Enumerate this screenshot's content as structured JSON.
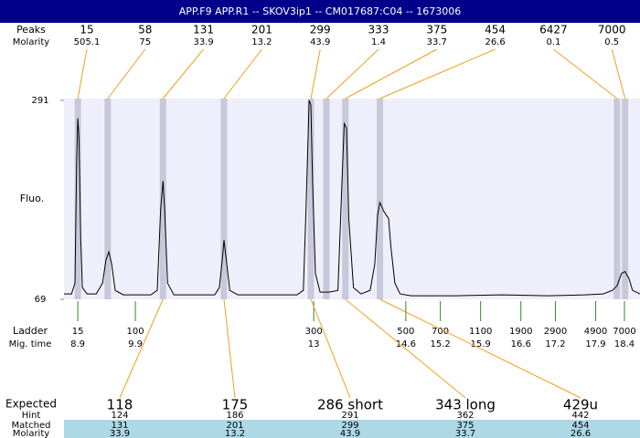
{
  "chart_data": {
    "type": "line",
    "title": "APP.F9  APP.R1 -- SKOV3ip1 -- CM017687:C04 -- 1673006",
    "ylabel": "Fluo.",
    "ylim": [
      69,
      291
    ],
    "yticks": [
      69,
      291
    ],
    "xlim": [
      8.66,
      18.67
    ],
    "color": "#000000",
    "x": [
      8.66,
      8.79,
      8.85,
      8.88,
      8.9,
      8.92,
      8.95,
      8.98,
      9.06,
      9.22,
      9.33,
      9.39,
      9.44,
      9.49,
      9.55,
      9.69,
      9.93,
      10.17,
      10.28,
      10.34,
      10.38,
      10.41,
      10.46,
      10.57,
      10.88,
      11.28,
      11.36,
      11.41,
      11.44,
      11.49,
      11.54,
      11.68,
      12.31,
      12.71,
      12.82,
      12.87,
      12.92,
      12.95,
      12.98,
      13.03,
      13.11,
      13.27,
      13.42,
      13.49,
      13.53,
      13.57,
      13.61,
      13.69,
      13.82,
      13.98,
      14.06,
      14.11,
      14.15,
      14.22,
      14.3,
      14.34,
      14.41,
      14.5,
      14.69,
      15.49,
      16.28,
      17.07,
      17.71,
      18.03,
      18.19,
      18.27,
      18.35,
      18.41,
      18.48,
      18.54,
      18.67
    ],
    "values": [
      75,
      75,
      87,
      220,
      271,
      250,
      138,
      82,
      75,
      75,
      87,
      113,
      122,
      108,
      79,
      74,
      74,
      74,
      79,
      169,
      201,
      169,
      87,
      74,
      74,
      74,
      82,
      113,
      135,
      108,
      79,
      74,
      74,
      74,
      79,
      179,
      291,
      286,
      199,
      98,
      77,
      77,
      79,
      199,
      265,
      260,
      159,
      82,
      75,
      79,
      108,
      163,
      177,
      167,
      159,
      128,
      87,
      75,
      73,
      73,
      74,
      73,
      74,
      75,
      79,
      84,
      98,
      100,
      92,
      79,
      75
    ],
    "peaks": {
      "label": "Peaks",
      "molarity_label": "Molarity",
      "sizes": [
        15,
        58,
        131,
        201,
        299,
        333,
        375,
        454,
        6427,
        7000
      ],
      "molarity": [
        505.1,
        75,
        33.9,
        13.2,
        43.9,
        1.4,
        33.7,
        26.6,
        0.1,
        0.5
      ],
      "times": [
        8.9,
        9.42,
        10.38,
        11.44,
        12.95,
        13.22,
        13.55,
        14.15,
        18.27,
        18.41
      ]
    },
    "ladder": {
      "label": "Ladder",
      "time_label": "Mig. time",
      "sizes": [
        15,
        100,
        300,
        500,
        700,
        1100,
        1900,
        2900,
        4900,
        7000
      ],
      "times": [
        8.9,
        9.9,
        13,
        14.6,
        15.2,
        15.9,
        16.6,
        17.2,
        17.9,
        18.4
      ]
    },
    "expected": {
      "label": "Expected",
      "hint_label": "Hint",
      "matched_label": "Matched",
      "molarity_label": "Molarity",
      "values": [
        "118",
        "175",
        "286 short",
        "343 long",
        "429u"
      ],
      "hint": [
        124,
        186,
        291,
        362,
        442
      ],
      "matched": [
        131,
        201,
        299,
        375,
        454
      ],
      "molarity": [
        33.9,
        13.2,
        43.9,
        33.7,
        26.6
      ]
    }
  }
}
